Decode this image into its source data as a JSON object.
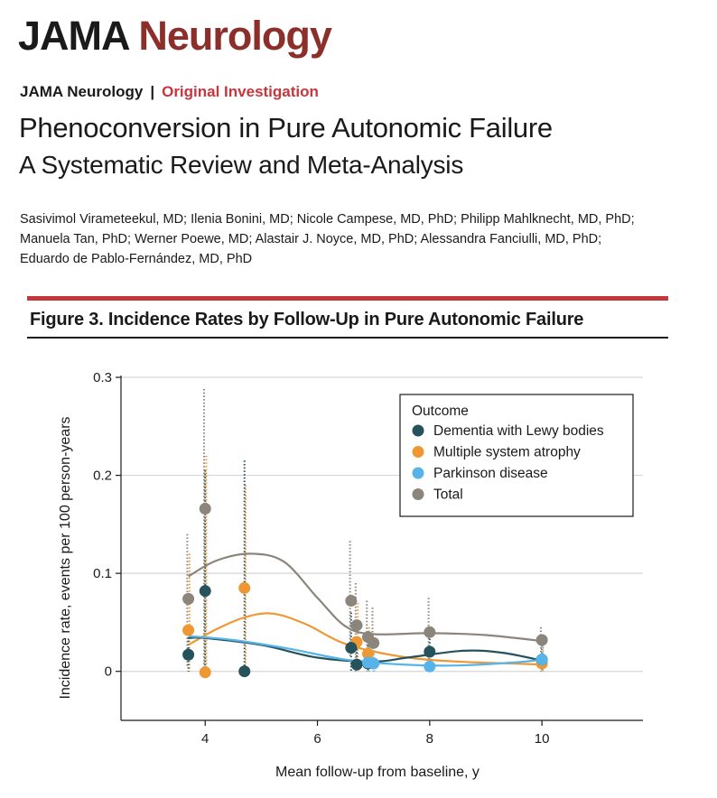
{
  "header": {
    "masthead_part1": "JAMA",
    "masthead_part2": "Neurology",
    "journal": "JAMA Neurology",
    "separator": "|",
    "section": "Original Investigation",
    "title": "Phenoconversion in Pure Autonomic Failure",
    "subtitle": "A Systematic Review and Meta-Analysis",
    "authors": [
      "Sasivimol Virameteekul, MD; Ilenia Bonini, MD; Nicole Campese, MD, PhD; Philipp Mahlknecht, MD, PhD;",
      "Manuela Tan, PhD; Werner Poewe, MD; Alastair J. Noyce, MD, PhD; Alessandra Fanciulli, MD, PhD;",
      "Eduardo de Pablo-Fernández, MD, PhD"
    ]
  },
  "figure": {
    "title": "Figure 3. Incidence Rates by Follow-Up in Pure Autonomic Failure"
  },
  "colors": {
    "dlb": "#26525c",
    "msa": "#ef9733",
    "pd": "#56b4e9",
    "total": "#8c857c",
    "red_rule": "#c8363d",
    "brand": "#8c2f2b"
  },
  "chart_data": {
    "type": "scatter",
    "xlabel": "Mean follow-up from baseline, y",
    "ylabel": "Incidence rate, events per 100 person-years",
    "xlim": [
      2.5,
      11.8
    ],
    "ylim": [
      -0.05,
      0.3
    ],
    "xticks": [
      4,
      6,
      8,
      10
    ],
    "yticks": [
      0,
      0.1,
      0.2,
      0.3
    ],
    "ytick_labels": [
      "0",
      "0.1",
      "0.2",
      "0.3"
    ],
    "grid": "horizontal",
    "legend": {
      "title": "Outcome",
      "placement": "top-right"
    },
    "series": [
      {
        "key": "dlb",
        "name": "Dementia with Lewy bodies",
        "points": [
          {
            "x": 3.7,
            "y": 0.017,
            "ci": [
              0.0,
              0.045
            ]
          },
          {
            "x": 4.0,
            "y": 0.082,
            "ci": [
              0.0,
              0.205
            ]
          },
          {
            "x": 4.7,
            "y": 0.0,
            "ci": [
              0.0,
              0.215
            ]
          },
          {
            "x": 6.6,
            "y": 0.024,
            "ci": [
              0.0,
              0.06
            ]
          },
          {
            "x": 6.7,
            "y": 0.007,
            "ci": [
              0.0,
              0.03
            ]
          },
          {
            "x": 6.9,
            "y": 0.008,
            "ci": [
              0.0,
              0.03
            ]
          },
          {
            "x": 8.0,
            "y": 0.02,
            "ci": [
              0.0,
              0.04
            ]
          },
          {
            "x": 10.0,
            "y": 0.012,
            "ci": [
              0.0,
              0.03
            ]
          }
        ],
        "trend": [
          [
            3.7,
            0.034
          ],
          [
            4.0,
            0.034
          ],
          [
            5.0,
            0.027
          ],
          [
            6.0,
            0.014
          ],
          [
            7.0,
            0.01
          ],
          [
            7.6,
            0.014
          ],
          [
            8.6,
            0.021
          ],
          [
            9.3,
            0.019
          ],
          [
            10.0,
            0.011
          ]
        ]
      },
      {
        "key": "msa",
        "name": "Multiple system atrophy",
        "points": [
          {
            "x": 3.7,
            "y": 0.042,
            "ci": [
              0.0,
              0.12
            ]
          },
          {
            "x": 4.0,
            "y": -0.001,
            "ci": [
              0.0,
              0.22
            ]
          },
          {
            "x": 4.7,
            "y": 0.085,
            "ci": [
              0.0,
              0.19
            ]
          },
          {
            "x": 6.7,
            "y": 0.03,
            "ci": [
              0.0,
              0.07
            ]
          },
          {
            "x": 6.9,
            "y": 0.018,
            "ci": [
              0.0,
              0.045
            ]
          },
          {
            "x": 10.0,
            "y": 0.008,
            "ci": [
              0.0,
              0.025
            ]
          }
        ],
        "trend": [
          [
            3.7,
            0.027
          ],
          [
            4.2,
            0.043
          ],
          [
            4.7,
            0.055
          ],
          [
            5.2,
            0.059
          ],
          [
            5.8,
            0.048
          ],
          [
            6.5,
            0.028
          ],
          [
            7.5,
            0.015
          ],
          [
            8.5,
            0.01
          ],
          [
            10.0,
            0.007
          ]
        ]
      },
      {
        "key": "pd",
        "name": "Parkinson disease",
        "points": [
          {
            "x": 6.9,
            "y": 0.009,
            "ci": [
              0.0,
              0.025
            ]
          },
          {
            "x": 7.0,
            "y": 0.008,
            "ci": [
              0.0,
              0.025
            ]
          },
          {
            "x": 8.0,
            "y": 0.005,
            "ci": [
              0.0,
              0.02
            ]
          },
          {
            "x": 10.0,
            "y": 0.012,
            "ci": [
              0.0,
              0.03
            ]
          }
        ],
        "trend": [
          [
            3.7,
            0.036
          ],
          [
            4.5,
            0.032
          ],
          [
            5.5,
            0.023
          ],
          [
            6.5,
            0.012
          ],
          [
            7.5,
            0.007
          ],
          [
            8.5,
            0.006
          ],
          [
            9.5,
            0.009
          ],
          [
            10.0,
            0.012
          ]
        ]
      },
      {
        "key": "total",
        "name": "Total",
        "points": [
          {
            "x": 3.7,
            "y": 0.074,
            "ci": [
              0.005,
              0.14
            ]
          },
          {
            "x": 4.0,
            "y": 0.166,
            "ci": [
              0.0,
              0.288
            ]
          },
          {
            "x": 6.6,
            "y": 0.072,
            "ci": [
              0.015,
              0.133
            ]
          },
          {
            "x": 6.7,
            "y": 0.047,
            "ci": [
              0.0,
              0.09
            ]
          },
          {
            "x": 6.9,
            "y": 0.035,
            "ci": [
              0.0,
              0.072
            ]
          },
          {
            "x": 7.0,
            "y": 0.029,
            "ci": [
              0.0,
              0.065
            ]
          },
          {
            "x": 8.0,
            "y": 0.04,
            "ci": [
              0.0,
              0.075
            ]
          },
          {
            "x": 10.0,
            "y": 0.032,
            "ci": [
              0.0,
              0.045
            ]
          }
        ],
        "trend": [
          [
            3.7,
            0.097
          ],
          [
            4.2,
            0.113
          ],
          [
            4.8,
            0.12
          ],
          [
            5.4,
            0.112
          ],
          [
            6.0,
            0.075
          ],
          [
            6.5,
            0.046
          ],
          [
            7.0,
            0.038
          ],
          [
            8.0,
            0.039
          ],
          [
            9.0,
            0.037
          ],
          [
            10.0,
            0.031
          ]
        ]
      }
    ]
  }
}
